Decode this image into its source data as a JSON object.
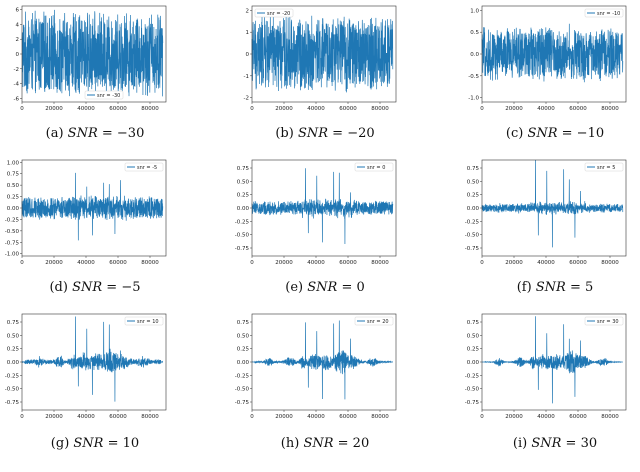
{
  "chart_data": [
    {
      "type": "line",
      "caption_label": "(a)",
      "caption_var": "SNR",
      "caption_value": "= −30",
      "legend": "snr = -30",
      "legend_pos": "bottom-center",
      "x_ticks": [
        "0",
        "20000",
        "40000",
        "60000",
        "80000"
      ],
      "y_ticks": [
        "6",
        "4",
        "2",
        "0",
        "-2",
        "-4",
        "-6"
      ],
      "xlim": [
        0,
        90000
      ],
      "ylim": [
        -6.5,
        6.5
      ],
      "profile": "noise",
      "noise_amp": 5.2,
      "spike_scale": 0
    },
    {
      "type": "line",
      "caption_label": "(b)",
      "caption_var": "SNR",
      "caption_value": "= −20",
      "legend": "snr = -20",
      "legend_pos": "top-left",
      "x_ticks": [
        "0",
        "20000",
        "40000",
        "60000",
        "80000"
      ],
      "y_ticks": [
        "2",
        "1",
        "0",
        "-1",
        "-2"
      ],
      "xlim": [
        0,
        90000
      ],
      "ylim": [
        -2.2,
        2.2
      ],
      "profile": "noise",
      "noise_amp": 1.6,
      "spike_scale": 0
    },
    {
      "type": "line",
      "caption_label": "(c)",
      "caption_var": "SNR",
      "caption_value": "= −10",
      "legend": "snr = -10",
      "legend_pos": "top-right",
      "x_ticks": [
        "0",
        "20000",
        "40000",
        "60000",
        "80000"
      ],
      "y_ticks": [
        "1.0",
        "0.5",
        "0.0",
        "-0.5",
        "-1.0"
      ],
      "xlim": [
        0,
        90000
      ],
      "ylim": [
        -1.1,
        1.1
      ],
      "profile": "noise",
      "noise_amp": 0.55,
      "spike_scale": 0.3
    },
    {
      "type": "line",
      "caption_label": "(d)",
      "caption_var": "SNR",
      "caption_value": "= −5",
      "legend": "snr = -5",
      "legend_pos": "top-right",
      "x_ticks": [
        "0",
        "20000",
        "40000",
        "60000",
        "80000"
      ],
      "y_ticks": [
        "1.00",
        "0.75",
        "0.50",
        "0.25",
        "0.00",
        "-0.25",
        "-0.50",
        "-0.75",
        "-1.00"
      ],
      "xlim": [
        0,
        90000
      ],
      "ylim": [
        -1.05,
        1.05
      ],
      "profile": "noise",
      "noise_amp": 0.22,
      "spike_scale": 0.85
    },
    {
      "type": "line",
      "caption_label": "(e)",
      "caption_var": "SNR",
      "caption_value": "= 0",
      "legend": "snr = 0",
      "legend_pos": "top-right",
      "x_ticks": [
        "0",
        "20000",
        "40000",
        "60000",
        "80000"
      ],
      "y_ticks": [
        "0.75",
        "0.50",
        "0.25",
        "0.00",
        "-0.25",
        "-0.50",
        "-0.75"
      ],
      "xlim": [
        0,
        90000
      ],
      "ylim": [
        -0.9,
        0.9
      ],
      "profile": "noise",
      "noise_amp": 0.12,
      "spike_scale": 0.85
    },
    {
      "type": "line",
      "caption_label": "(f)",
      "caption_var": "SNR",
      "caption_value": "= 5",
      "legend": "snr = 5",
      "legend_pos": "top-right",
      "x_ticks": [
        "0",
        "20000",
        "40000",
        "60000",
        "80000"
      ],
      "y_ticks": [
        "0.75",
        "0.50",
        "0.25",
        "0.00",
        "-0.25",
        "-0.50",
        "-0.75"
      ],
      "xlim": [
        0,
        90000
      ],
      "ylim": [
        -0.9,
        0.9
      ],
      "profile": "noise",
      "noise_amp": 0.07,
      "spike_scale": 0.85
    },
    {
      "type": "line",
      "caption_label": "(g)",
      "caption_var": "SNR",
      "caption_value": "= 10",
      "legend": "snr = 10",
      "legend_pos": "top-right",
      "x_ticks": [
        "0",
        "20000",
        "40000",
        "60000",
        "80000"
      ],
      "y_ticks": [
        "0.75",
        "0.50",
        "0.25",
        "0.00",
        "-0.25",
        "-0.50",
        "-0.75"
      ],
      "xlim": [
        0,
        90000
      ],
      "ylim": [
        -0.9,
        0.9
      ],
      "profile": "speech",
      "noise_amp": 0.04,
      "spike_scale": 0.85
    },
    {
      "type": "line",
      "caption_label": "(h)",
      "caption_var": "SNR",
      "caption_value": "= 20",
      "legend": "snr = 20",
      "legend_pos": "top-right",
      "x_ticks": [
        "0",
        "20000",
        "40000",
        "60000",
        "80000"
      ],
      "y_ticks": [
        "0.75",
        "0.50",
        "0.25",
        "0.00",
        "-0.25",
        "-0.50",
        "-0.75"
      ],
      "xlim": [
        0,
        90000
      ],
      "ylim": [
        -0.9,
        0.9
      ],
      "profile": "speech",
      "noise_amp": 0.015,
      "spike_scale": 0.85
    },
    {
      "type": "line",
      "caption_label": "(i)",
      "caption_var": "SNR",
      "caption_value": "= 30",
      "legend": "snr = 30",
      "legend_pos": "top-right",
      "x_ticks": [
        "0",
        "20000",
        "40000",
        "60000",
        "80000"
      ],
      "y_ticks": [
        "0.75",
        "0.50",
        "0.25",
        "0.00",
        "-0.25",
        "-0.50",
        "-0.75"
      ],
      "xlim": [
        0,
        90000
      ],
      "ylim": [
        -0.9,
        0.9
      ],
      "profile": "speech",
      "noise_amp": 0.005,
      "spike_scale": 0.85
    }
  ],
  "colors": {
    "series": "#1f77b4",
    "axis": "#333333",
    "text": "#222222"
  }
}
